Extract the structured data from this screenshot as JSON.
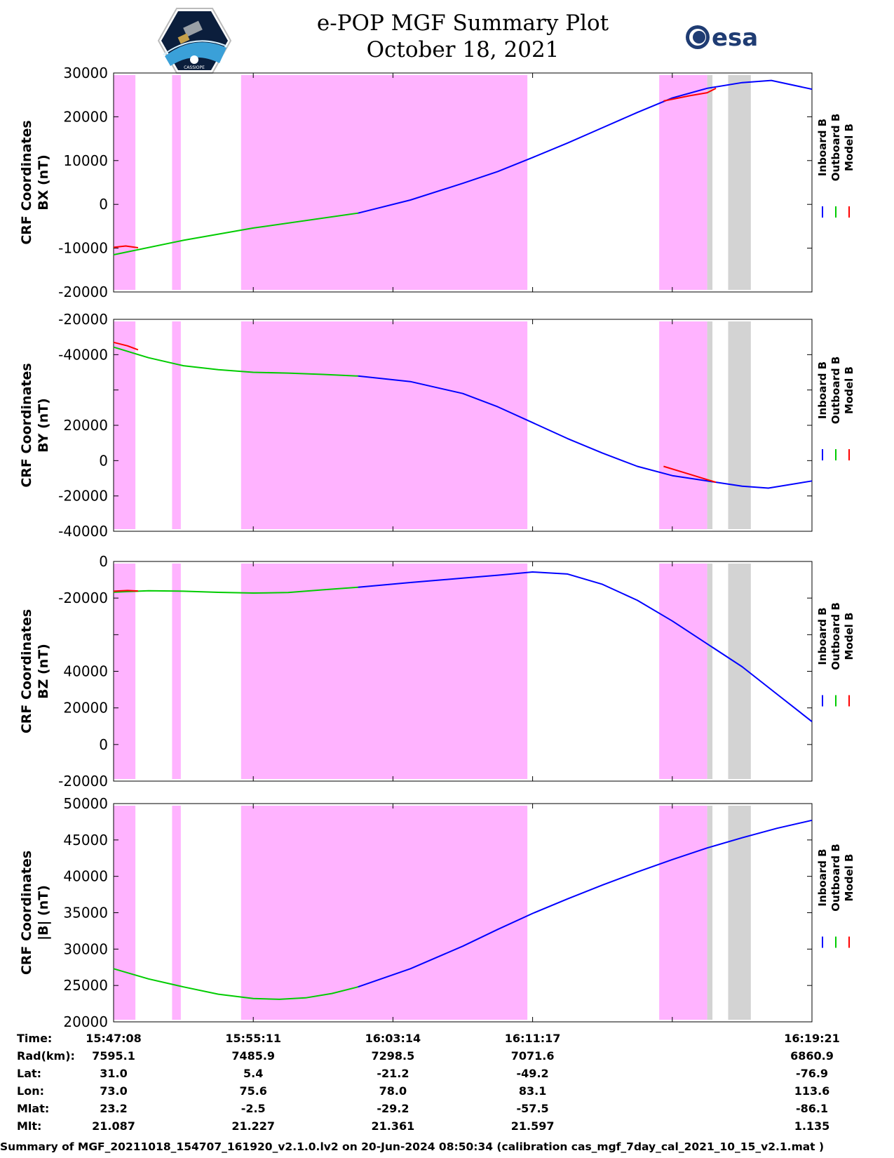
{
  "header": {
    "title_line1": "e-POP MGF Summary Plot",
    "title_line2": "October 18, 2021",
    "logo_left": "CASSIOPE",
    "logo_right": "esa"
  },
  "colors": {
    "inboard": "#0000ff",
    "outboard": "#00cc00",
    "model": "#ff0000",
    "highlight_magenta": "#ffb3ff",
    "highlight_grey": "#d3d3d3"
  },
  "legend": [
    "Inboard B",
    "Outboard B",
    "Model B"
  ],
  "chart_data": [
    {
      "type": "line",
      "ylabel": [
        "CRF Coordinates",
        "BX (nT)"
      ],
      "ylim": [
        -20000,
        30000
      ],
      "yticks": [
        "30000",
        "20000",
        "10000",
        "0",
        "-10000",
        "-20000"
      ],
      "x_minutes": [
        0,
        4,
        8,
        11,
        14,
        17,
        20,
        22,
        24,
        26,
        28,
        30,
        31,
        32,
        34,
        36
      ],
      "series": [
        {
          "name": "Outboard B",
          "x": [
            0,
            4,
            8,
            14
          ],
          "values": [
            -11500,
            -8200,
            -5400,
            -2000
          ]
        },
        {
          "name": "Inboard B",
          "x": [
            14,
            17,
            20,
            22,
            24,
            26,
            28,
            30,
            32,
            34,
            36,
            37.67,
            40
          ],
          "values": [
            -2000,
            1000,
            4800,
            7500,
            10700,
            14000,
            17500,
            21000,
            24300,
            26500,
            27800,
            28300,
            26300
          ]
        },
        {
          "name": "Model B",
          "x": [
            0,
            0.7,
            1.4
          ],
          "values": [
            -9800,
            -9500,
            -9900
          ]
        },
        {
          "name": "Model B",
          "x": [
            31.5,
            33,
            34,
            34.5
          ],
          "values": [
            23600,
            24800,
            25500,
            26500
          ]
        }
      ]
    },
    {
      "type": "line",
      "ylabel": [
        "CRF Coordinates",
        "BY (nT)"
      ],
      "ylim": [
        -40000,
        40000
      ],
      "yticks": [
        "-20000",
        "-40000",
        "",
        "20000",
        "0",
        "-20000",
        "-40000"
      ],
      "series": [
        {
          "name": "Outboard B",
          "x": [
            0,
            2,
            4,
            6,
            8,
            10,
            12,
            14
          ],
          "values": [
            29500,
            25500,
            22500,
            21000,
            20000,
            19700,
            19200,
            18600
          ]
        },
        {
          "name": "Inboard B",
          "x": [
            14,
            17,
            20,
            22,
            24,
            26,
            28,
            30,
            32,
            34,
            36,
            37.5,
            40
          ],
          "values": [
            18600,
            16500,
            12000,
            7000,
            1000,
            -5000,
            -10500,
            -15500,
            -19000,
            -21000,
            -23000,
            -23700,
            -21000
          ]
        },
        {
          "name": "Model B",
          "x": [
            0,
            0.8,
            1.4
          ],
          "values": [
            31300,
            30000,
            28500
          ]
        },
        {
          "name": "Model B",
          "x": [
            31.5,
            33,
            34,
            34.5
          ],
          "values": [
            -15500,
            -18500,
            -20500,
            -21500
          ]
        }
      ]
    },
    {
      "type": "line",
      "ylabel": [
        "CRF Coordinates",
        "BZ (nT)"
      ],
      "ylim": [
        -26000,
        70000
      ],
      "yticks": [
        "0",
        "-20000",
        "",
        "40000",
        "20000",
        "0",
        "-20000"
      ],
      "series": [
        {
          "name": "Outboard B",
          "x": [
            0,
            2,
            4,
            6,
            8,
            10,
            12,
            14
          ],
          "values": [
            56600,
            57200,
            57000,
            56500,
            56200,
            56400,
            57600,
            58700
          ]
        },
        {
          "name": "Inboard B",
          "x": [
            14,
            17,
            20,
            22,
            24,
            26,
            28,
            30,
            32,
            34,
            36,
            38,
            40
          ],
          "values": [
            58700,
            60800,
            62700,
            64000,
            65400,
            64500,
            60000,
            53000,
            44000,
            34000,
            24000,
            12000,
            0
          ]
        },
        {
          "name": "Model B",
          "x": [
            0,
            0.8,
            1.4
          ],
          "values": [
            57000,
            57300,
            57100
          ]
        }
      ]
    },
    {
      "type": "line",
      "ylabel": [
        "CRF Coordinates",
        "|B| (nT)"
      ],
      "ylim": [
        20000,
        50000
      ],
      "yticks": [
        "50000",
        "45000",
        "40000",
        "35000",
        "30000",
        "25000",
        "20000"
      ],
      "series": [
        {
          "name": "Outboard B",
          "x": [
            0,
            2,
            4,
            6,
            8,
            9.5,
            11,
            12.5,
            14
          ],
          "values": [
            27300,
            25900,
            24800,
            23800,
            23200,
            23100,
            23300,
            23900,
            24800
          ]
        },
        {
          "name": "Inboard B",
          "x": [
            14,
            17,
            20,
            22,
            24,
            26,
            28,
            30,
            32,
            34,
            36,
            38,
            40
          ],
          "values": [
            24800,
            27300,
            30400,
            32700,
            34900,
            36900,
            38800,
            40600,
            42300,
            43900,
            45300,
            46600,
            47700
          ]
        }
      ]
    }
  ],
  "x_axis": {
    "tick_minutes": [
      0,
      8,
      16,
      24,
      32
    ],
    "labels": [
      "15:47:08",
      "15:55:11",
      "16:03:14",
      "16:11:17",
      "16:19:21"
    ]
  },
  "shaded_regions": [
    {
      "start_min": 0,
      "end_min": 1.25,
      "color": "magenta"
    },
    {
      "start_min": 3.35,
      "end_min": 3.85,
      "color": "magenta"
    },
    {
      "start_min": 7.3,
      "end_min": 23.7,
      "color": "magenta"
    },
    {
      "start_min": 31.25,
      "end_min": 34.0,
      "color": "magenta"
    },
    {
      "start_min": 34.0,
      "end_min": 34.3,
      "color": "grey"
    },
    {
      "start_min": 35.2,
      "end_min": 36.5,
      "color": "grey"
    }
  ],
  "ephemeris": {
    "rows": [
      {
        "label": "Time:",
        "values": [
          "15:47:08",
          "15:55:11",
          "16:03:14",
          "16:11:17",
          "16:19:21"
        ]
      },
      {
        "label": "Rad(km):",
        "values": [
          "7595.1",
          "7485.9",
          "7298.5",
          "7071.6",
          "6860.9"
        ]
      },
      {
        "label": "Lat:",
        "values": [
          "31.0",
          "5.4",
          "-21.2",
          "-49.2",
          "-76.9"
        ]
      },
      {
        "label": "Lon:",
        "values": [
          "73.0",
          "75.6",
          "78.0",
          "83.1",
          "113.6"
        ]
      },
      {
        "label": "Mlat:",
        "values": [
          "23.2",
          "-2.5",
          "-29.2",
          "-57.5",
          "-86.1"
        ]
      },
      {
        "label": "Mlt:",
        "values": [
          "21.087",
          "21.227",
          "21.361",
          "21.597",
          "1.135"
        ]
      }
    ]
  },
  "caption": "Summary of MGF_20211018_154707_161920_v2.1.0.lv2 on 20-Jun-2024 08:50:34 (calibration cas_mgf_7day_cal_2021_10_15_v2.1.mat )"
}
